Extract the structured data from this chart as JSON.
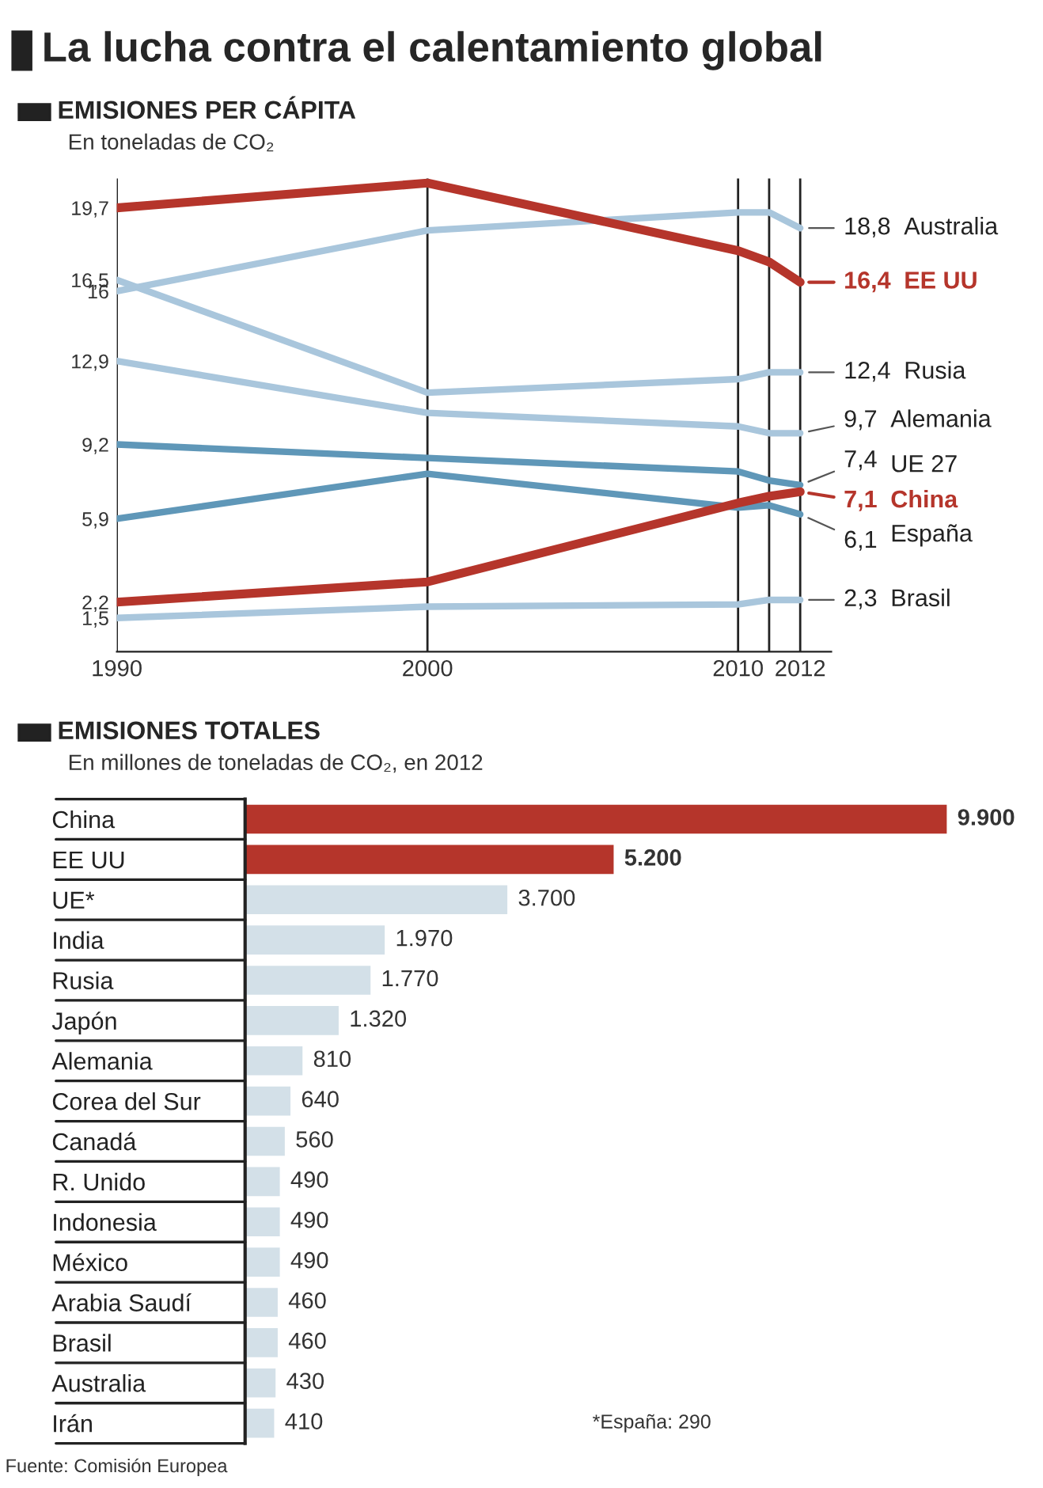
{
  "chart_data": [
    {
      "type": "line",
      "title": "EMISIONES PER CÁPITA",
      "subtitle": "En toneladas de CO₂",
      "annotations": [
        "La lucha contra el calentamiento global"
      ],
      "x": [
        1990,
        2000,
        2010,
        2011,
        2012
      ],
      "xlim": [
        1990,
        2013
      ],
      "xticks": [
        1990,
        2000,
        2010,
        {
          "value": 2011,
          "label": null
        },
        2012
      ],
      "ylim": [
        0,
        21
      ],
      "yticks": [
        {
          "value": 19.7,
          "label": "19,7"
        },
        {
          "value": 16.5,
          "label": "16,5"
        },
        16,
        {
          "value": 12.9,
          "label": "12,9"
        },
        {
          "value": 9.2,
          "label": "9,2"
        },
        {
          "value": 5.9,
          "label": "5,9"
        },
        {
          "value": 2.2,
          "label": "2,2"
        },
        {
          "value": 1.5,
          "label": "1,5"
        }
      ],
      "grid": "x",
      "series": [
        {
          "name": "Australia",
          "color": "#a9c6dc",
          "values": [
            16,
            18.7,
            19.5,
            19.5,
            18.8
          ],
          "value_labels": [
            null,
            null,
            null,
            null,
            "18,8"
          ]
        },
        {
          "name": "Rusia",
          "color": "#a9c6dc",
          "values": [
            16.5,
            11.5,
            12.1,
            12.4,
            12.4
          ],
          "value_labels": [
            null,
            null,
            null,
            null,
            "12,4"
          ]
        },
        {
          "name": "Alemania",
          "color": "#a9c6dc",
          "values": [
            12.9,
            10.6,
            10.0,
            9.7,
            9.7
          ],
          "value_labels": [
            null,
            null,
            null,
            null,
            "9,7"
          ]
        },
        {
          "name": "UE 27",
          "color": "#5f97b8",
          "values": [
            9.2,
            8.6,
            8.0,
            7.6,
            7.4
          ],
          "value_labels": [
            null,
            null,
            null,
            null,
            "7,4"
          ]
        },
        {
          "name": "España",
          "color": "#5f97b8",
          "values": [
            5.9,
            7.9,
            6.4,
            6.5,
            6.1
          ],
          "value_labels": [
            null,
            null,
            null,
            null,
            "6,1"
          ]
        },
        {
          "name": "Brasil",
          "color": "#a9c6dc",
          "values": [
            1.5,
            2.0,
            2.1,
            2.3,
            2.3
          ],
          "value_labels": [
            null,
            null,
            null,
            null,
            "2,3"
          ]
        },
        {
          "name": "EE UU",
          "color": "#b5352b",
          "values": [
            19.7,
            20.8,
            17.8,
            17.3,
            16.4
          ],
          "value_labels": [
            null,
            null,
            null,
            null,
            "16,4"
          ]
        },
        {
          "name": "China",
          "color": "#b5352b",
          "values": [
            2.2,
            3.1,
            6.6,
            6.9,
            7.1
          ],
          "value_labels": [
            null,
            null,
            null,
            null,
            "7,1"
          ]
        }
      ]
    },
    {
      "type": "bar",
      "orientation": "horizontal",
      "title": "EMISIONES TOTALES",
      "subtitle": "En millones de toneladas de CO₂, en 2012",
      "annotations": [
        "*España: 290",
        "Fuente: Comisión Europea"
      ],
      "categories": [
        "China",
        "EE UU",
        "UE*",
        "India",
        "Rusia",
        "Japón",
        "Alemania",
        "Corea del Sur",
        "Canadá",
        "R. Unido",
        "Indonesia",
        "México",
        "Arabia Saudí",
        "Brasil",
        "Australia",
        "Irán"
      ],
      "series": [
        {
          "colors": [
            "#b5352b",
            "#b5352b",
            "#d3e0e8",
            "#d3e0e8",
            "#d3e0e8",
            "#d3e0e8",
            "#d3e0e8",
            "#d3e0e8",
            "#d3e0e8",
            "#d3e0e8",
            "#d3e0e8",
            "#d3e0e8",
            "#d3e0e8",
            "#d3e0e8",
            "#d3e0e8",
            "#d3e0e8"
          ],
          "values": [
            9900,
            5200,
            3700,
            1970,
            1770,
            1320,
            810,
            640,
            560,
            490,
            490,
            490,
            460,
            460,
            430,
            410
          ],
          "value_labels": [
            "9.900",
            "5.200",
            "3.700",
            "1.970",
            "1.770",
            "1.320",
            "810",
            "640",
            "560",
            "490",
            "490",
            "490",
            "460",
            "460",
            "430",
            "410"
          ]
        }
      ]
    }
  ]
}
